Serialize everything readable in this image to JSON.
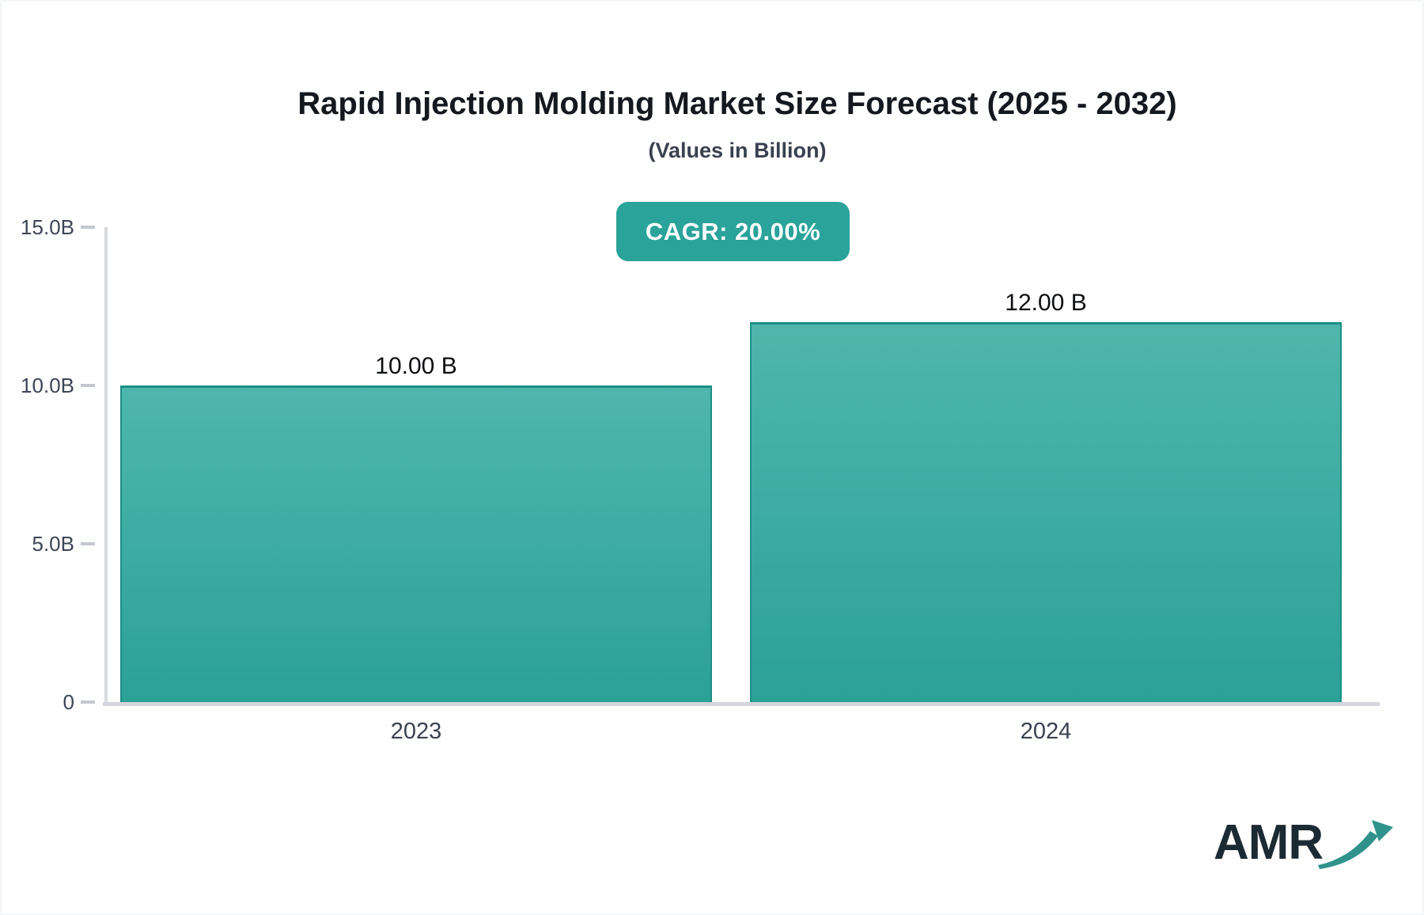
{
  "header": {
    "title": "Rapid Injection Molding Market Size Forecast (2025 - 2032)",
    "subtitle": "(Values in Billion)"
  },
  "badge": {
    "label": "CAGR: 20.00%",
    "bg": "#2aa39a",
    "text_color": "#ffffff"
  },
  "logo": {
    "text": "AMR",
    "arrow_icon": "growth-arrow-icon",
    "text_color": "#1c2a33",
    "arrow_color": "#2f938c"
  },
  "colors": {
    "bar_gradient_top": "#4fb6ac",
    "bar_gradient_bottom": "#2ba197",
    "bar_border": "#1e8e86",
    "axis_line": "#d8dade",
    "tick_dash": "#c3c7cf",
    "tick_text": "#3c4554"
  },
  "chart_data": {
    "type": "bar",
    "title": "Rapid Injection Molding Market Size Forecast (2025 - 2032)",
    "subtitle": "(Values in Billion)",
    "categories": [
      "2023",
      "2024"
    ],
    "values": [
      10.0,
      12.0
    ],
    "value_labels": [
      "10.00 B",
      "12.00 B"
    ],
    "xlabel": "",
    "ylabel": "",
    "ylim": [
      0,
      15
    ],
    "yticks": [
      {
        "value": 0,
        "label": "0"
      },
      {
        "value": 5,
        "label": "5.0B"
      },
      {
        "value": 10,
        "label": "10.0B"
      },
      {
        "value": 15,
        "label": "15.0B"
      }
    ],
    "grid": false,
    "legend": "none",
    "annotations": [
      "CAGR: 20.00%"
    ]
  }
}
